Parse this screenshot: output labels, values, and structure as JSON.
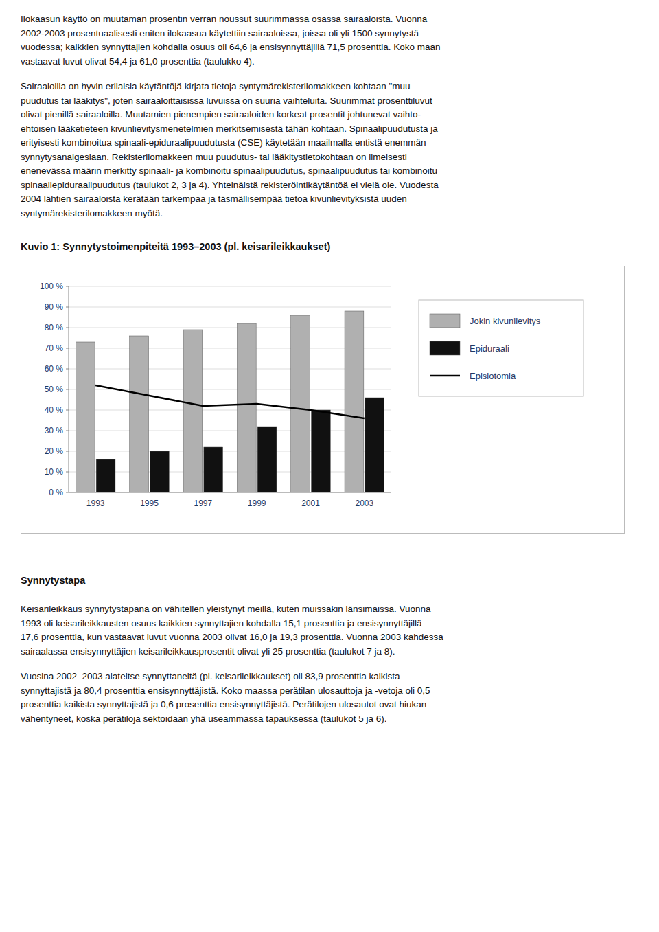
{
  "chart_data": {
    "type": "bar",
    "title": "Kuvio 1: Synnytystoimenpiteitä 1993–2003 (pl. keisarileikkaukset)",
    "categories": [
      1993,
      1995,
      1997,
      1999,
      2001,
      2003
    ],
    "series": [
      {
        "name": "Jokin kivunlievitys",
        "color": "#b0b0b0",
        "values": [
          73,
          76,
          79,
          82,
          86,
          88
        ]
      },
      {
        "name": "Epiduraali",
        "color": "#111111",
        "values": [
          16,
          20,
          22,
          32,
          40,
          46
        ]
      },
      {
        "name": "Episiotomia",
        "color": "#000000",
        "type": "line",
        "values": [
          52,
          47,
          42,
          43,
          40,
          36
        ]
      }
    ],
    "ylim": [
      0,
      100
    ],
    "yticks": [
      {
        "value": 0,
        "label": "0 %"
      },
      {
        "value": 10,
        "label": "10 %"
      },
      {
        "value": 20,
        "label": "20 %"
      },
      {
        "value": 30,
        "label": "30 %"
      },
      {
        "value": 40,
        "label": "40 %"
      },
      {
        "value": 50,
        "label": "50 %"
      },
      {
        "value": 60,
        "label": "60 %"
      },
      {
        "value": 70,
        "label": "70 %"
      },
      {
        "value": 80,
        "label": "80 %"
      },
      {
        "value": 90,
        "label": "90 %"
      },
      {
        "value": 100,
        "label": "100 %"
      }
    ],
    "grid": true,
    "legend": "right"
  },
  "text_before": [
    [
      "Ilokaasun käyttö on muutaman prosentin verran noussut suurimmassa osassa sairaaloista. Vuonna",
      "2002-2003 prosentuaalisesti eniten ilokaasua käytettiin sairaaloissa, joissa oli yli 1500 synnytystä",
      "vuodessa; kaikkien synnyttajien kohdalla osuus oli 64,6 ja ensisynnyttäjillä 71,5 prosenttia. Koko maan",
      "vastaavat luvut olivat 54,4 ja 61,0 prosenttia (taulukko 4)."
    ],
    [
      "Sairaaloilla on hyvin erilaisia käytäntöjä kirjata tietoja syntymärekisterilomakkeen kohtaan \"muu",
      "puudutus tai lääkitys\", joten sairaaloittaisissa luvuissa on suuria vaihteluita. Suurimmat prosenttiluvut",
      "olivat pienillä sairaaloilla. Muutamien pienempien sairaaloiden korkeat prosentit johtunevat vaihto-",
      "ehtoisen lääketieteen kivunlievitysmenetelmien merkitsemisestä tähän kohtaan. Spinaalipuudutusta ja",
      "erityisesti kombinoitua spinaali-epiduraalipuudutusta (CSE) käytetään maailmalla entistä enemmän",
      "synnytysanalgesiaan. Rekisterilomakkeen muu puudutus- tai lääkitystietokohtaan on ilmeisesti",
      "enenevässä määrin merkitty spinaali- ja kombinoitu spinaalipuudutus, spinaalipuudutus tai kombinoitu",
      "spinaaliepiduraalipuudutus (taulukot 2, 3 ja 4). Yhteinäistä rekisteröintikäytäntöä ei vielä ole. Vuodesta",
      "2004 lähtien sairaaloista kerätään tarkempaa ja täsmällisempää tietoa kivunlievityksistä uuden",
      "syntymärekisterilomakkeen myötä."
    ]
  ],
  "heading": "Synnytystapa",
  "text_after": [
    [
      "Keisarileikkaus synnytystapana on vähitellen yleistynyt meillä, kuten muissakin länsimaissa. Vuonna",
      "1993 oli keisarileikkausten osuus kaikkien synnyttajien kohdalla 15,1 prosenttia ja ensisynnyttäjillä",
      "17,6 prosenttia, kun vastaavat luvut vuonna 2003 olivat 16,0 ja 19,3 prosenttia. Vuonna 2003 kahdessa",
      "sairaalassa ensisynnyttäjien keisarileikkausprosentit olivat yli 25 prosenttia (taulukot 7 ja 8)."
    ],
    [
      "Vuosina 2002–2003 alateitse synnyttaneitä (pl. keisarileikkaukset) oli 83,9 prosenttia kaikista",
      "synnyttajistä ja 80,4 prosenttia ensisynnyttäjistä. Koko maassa perätilan ulosauttoja ja -vetoja oli 0,5",
      "prosenttia kaikista synnyttajistä ja 0,6 prosenttia ensisynnyttäjistä. Perätilojen ulosautot ovat hiukan",
      "vähentyneet, koska perätiloja sektoidaan yhä useammassa tapauksessa (taulukot 5 ja 6)."
    ]
  ]
}
